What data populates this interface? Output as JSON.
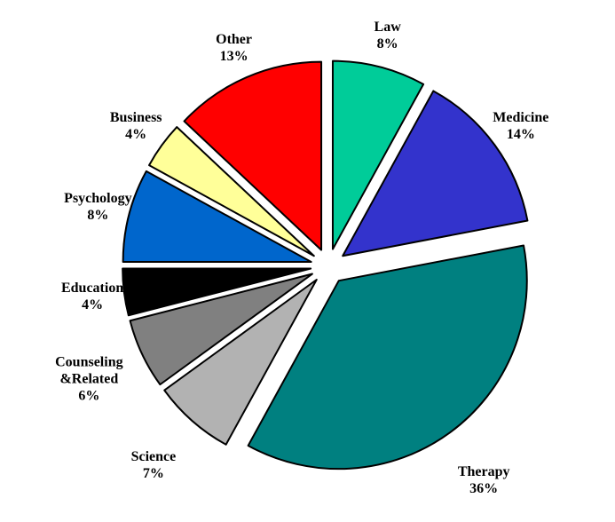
{
  "chart_data": {
    "type": "pie",
    "categories": [
      "Law",
      "Medicine",
      "Therapy",
      "Science",
      "Counseling &Related",
      "Education",
      "Psychology",
      "Business",
      "Other"
    ],
    "values": [
      8,
      14,
      36,
      7,
      6,
      4,
      8,
      4,
      13
    ],
    "value_labels": [
      "8%",
      "14%",
      "36%",
      "7%",
      "6%",
      "4%",
      "8%",
      "4%",
      "13%"
    ],
    "colors": [
      "#00cc99",
      "#3333cc",
      "#008080",
      "#b2b2b2",
      "#808080",
      "#000000",
      "#0066cc",
      "#ffff99",
      "#ff0000"
    ]
  }
}
